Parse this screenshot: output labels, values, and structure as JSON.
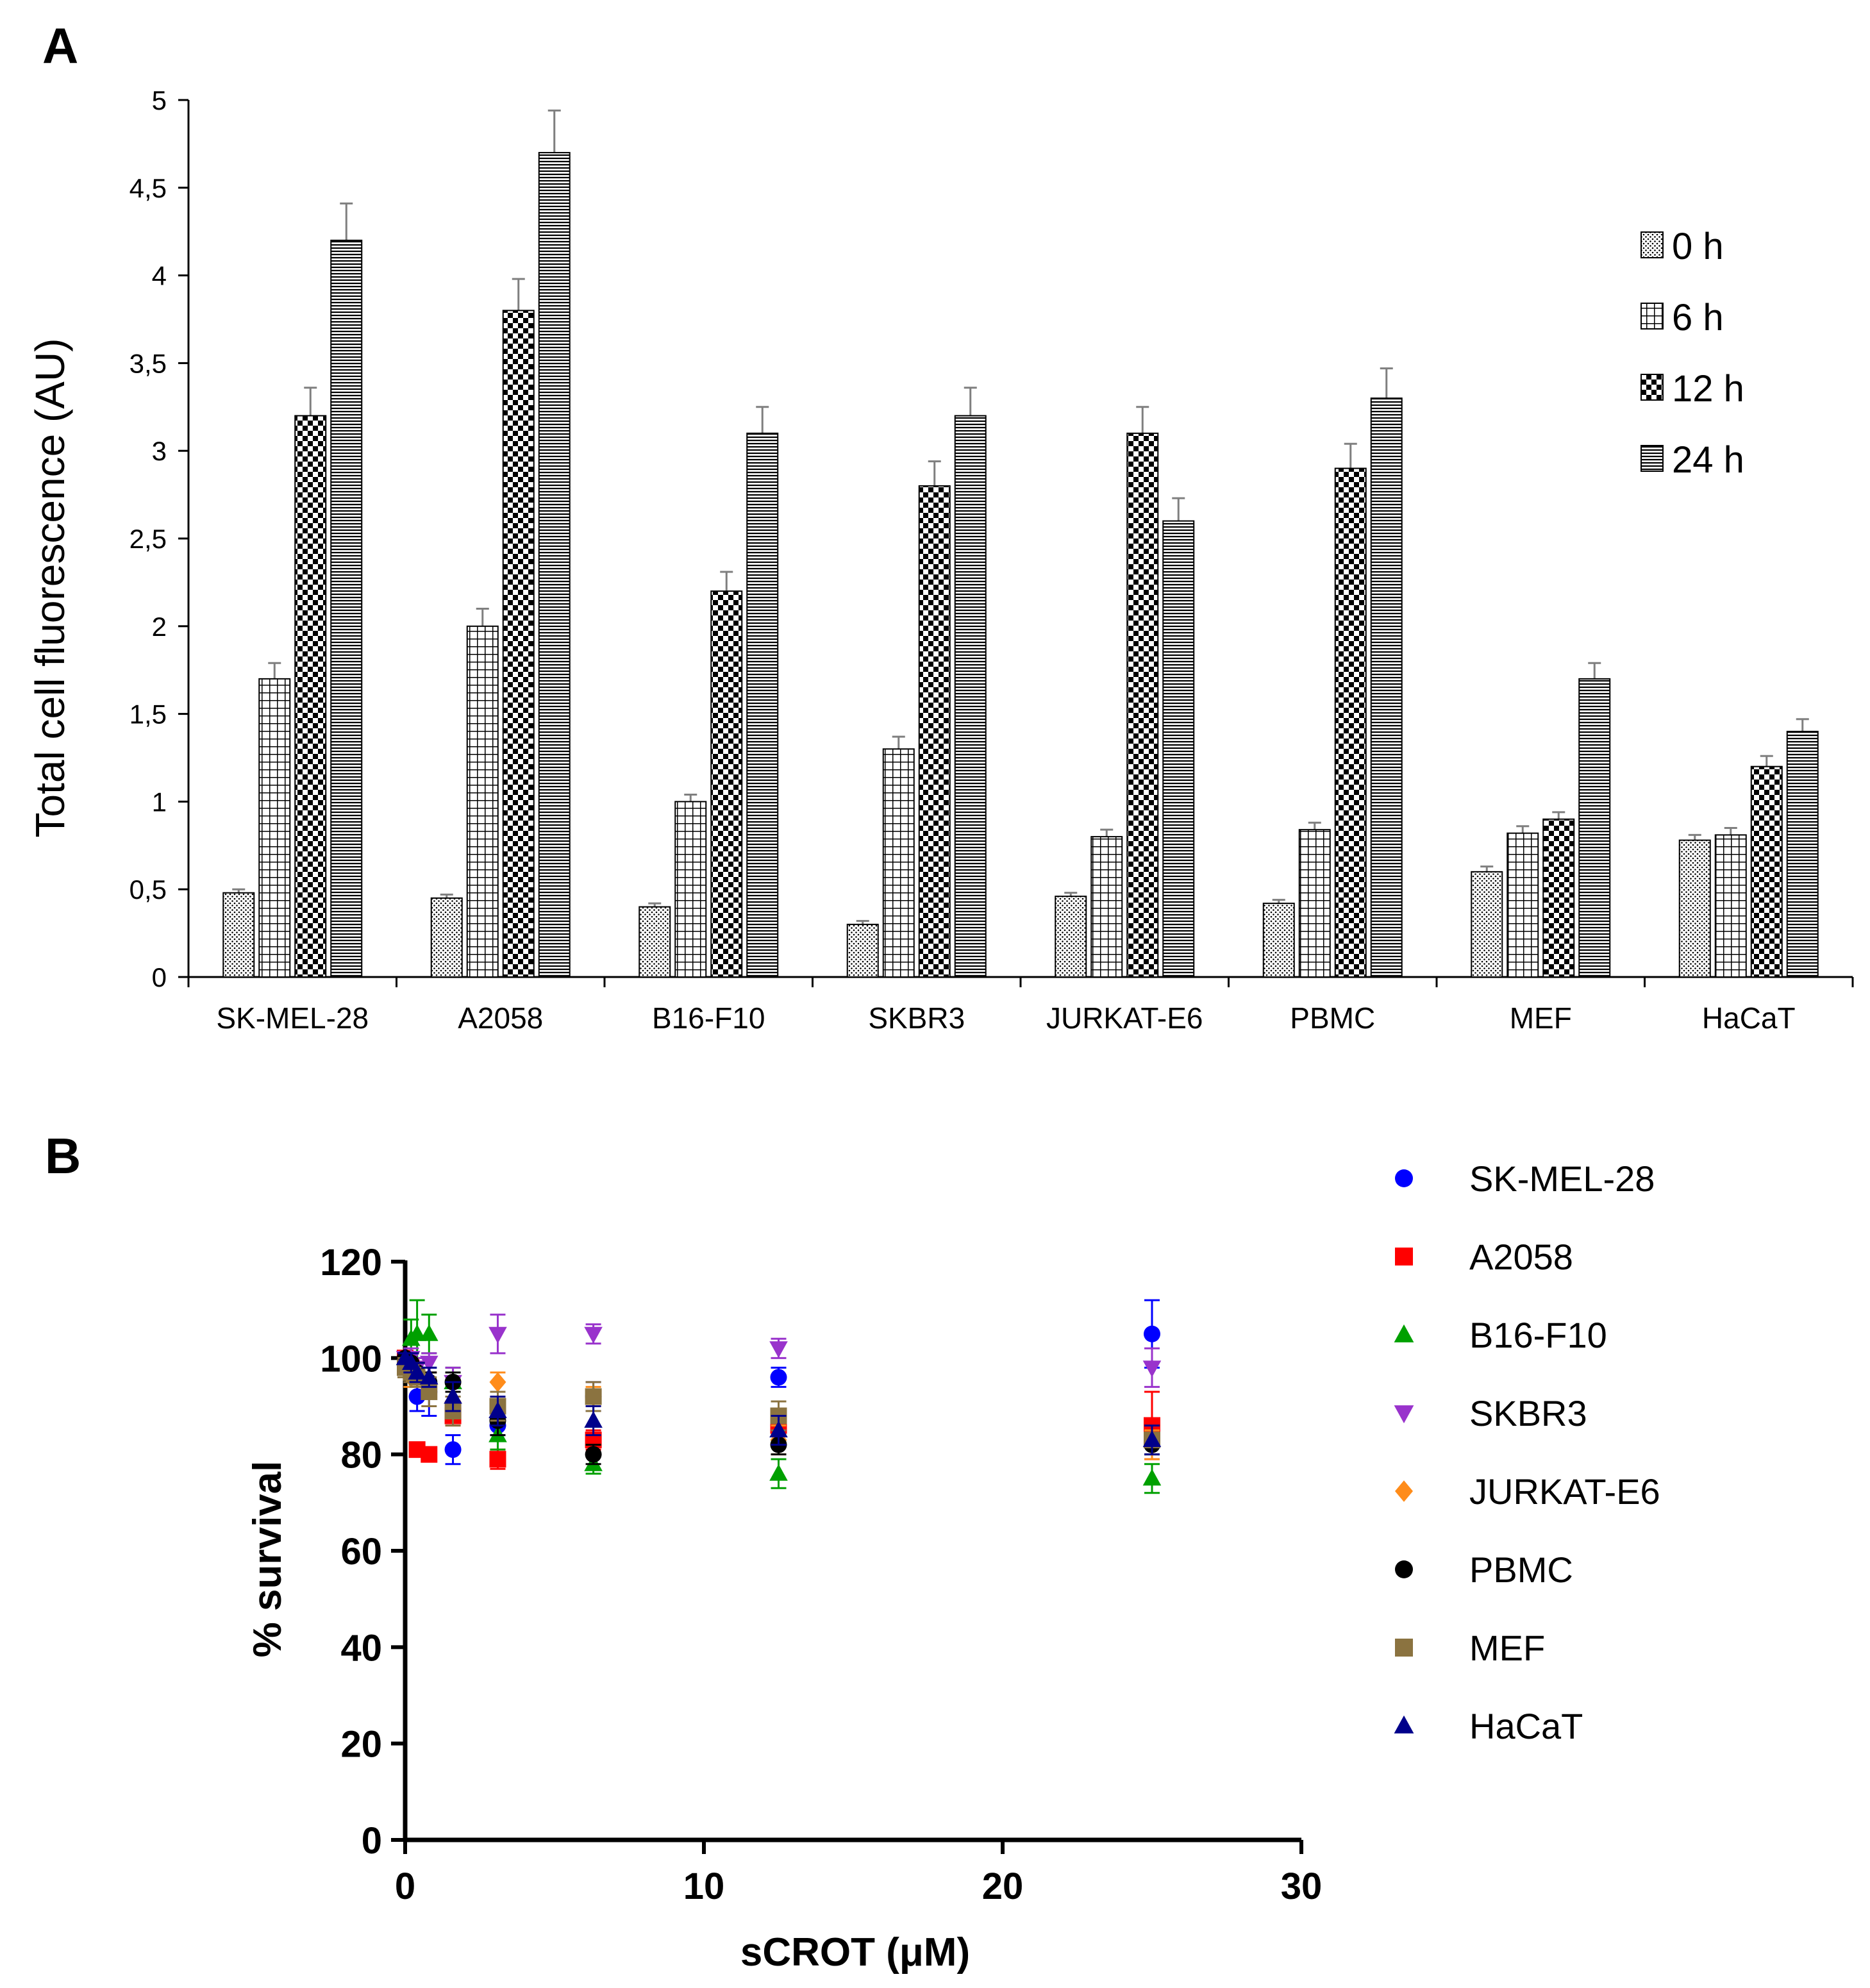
{
  "chart_data": [
    {
      "panel_label": "A",
      "type": "bar",
      "ylabel": "Total cell fluorescence (AU)",
      "xlabel": "",
      "ylim": [
        0,
        5
      ],
      "yticks": [
        0,
        0.5,
        1,
        1.5,
        2,
        2.5,
        3,
        3.5,
        4,
        4.5,
        5
      ],
      "ytick_labels": [
        "0",
        "0,5",
        "1",
        "1,5",
        "2",
        "2,5",
        "3",
        "3,5",
        "4",
        "4,5",
        "5"
      ],
      "categories": [
        "SK-MEL-28",
        "A2058",
        "B16-F10",
        "SKBR3",
        "JURKAT-E6",
        "PBMC",
        "MEF",
        "HaCaT"
      ],
      "legend_position": "top-right",
      "series": [
        {
          "name": "0 h",
          "pattern": "dots",
          "values": [
            0.48,
            0.45,
            0.4,
            0.3,
            0.46,
            0.42,
            0.6,
            0.78
          ],
          "errors": [
            0.02,
            0.02,
            0.02,
            0.02,
            0.02,
            0.02,
            0.03,
            0.03
          ]
        },
        {
          "name": "6 h",
          "pattern": "grid",
          "values": [
            1.7,
            2.0,
            1.0,
            1.3,
            0.8,
            0.84,
            0.82,
            0.81
          ],
          "errors": [
            0.09,
            0.1,
            0.04,
            0.07,
            0.04,
            0.04,
            0.04,
            0.04
          ]
        },
        {
          "name": "12 h",
          "pattern": "checker",
          "values": [
            3.2,
            3.8,
            2.2,
            2.8,
            3.1,
            2.9,
            0.9,
            1.2
          ],
          "errors": [
            0.16,
            0.18,
            0.11,
            0.14,
            0.15,
            0.14,
            0.04,
            0.06
          ]
        },
        {
          "name": "24 h",
          "pattern": "hlines",
          "values": [
            4.2,
            4.7,
            3.1,
            3.2,
            2.6,
            3.3,
            1.7,
            1.4
          ],
          "errors": [
            0.21,
            0.24,
            0.15,
            0.16,
            0.13,
            0.17,
            0.09,
            0.07
          ]
        }
      ]
    },
    {
      "panel_label": "B",
      "type": "scatter",
      "xlabel": "sCROT (μM)",
      "ylabel": "% survival",
      "xlim": [
        0,
        30
      ],
      "ylim": [
        0,
        120
      ],
      "xticks": [
        0,
        10,
        20,
        30
      ],
      "yticks": [
        0,
        20,
        40,
        60,
        80,
        100,
        120
      ],
      "legend_position": "right",
      "series": [
        {
          "name": "SK-MEL-28",
          "marker": "circle",
          "color": "#0000ff",
          "x": [
            0,
            0.2,
            0.4,
            0.8,
            1.6,
            3.1,
            6.3,
            12.5,
            25
          ],
          "y": [
            100,
            99,
            92,
            93,
            81,
            86,
            92,
            96,
            105
          ],
          "errors": [
            1,
            1,
            3,
            5,
            3,
            2,
            3,
            2,
            7
          ]
        },
        {
          "name": "A2058",
          "marker": "square",
          "color": "#ff0000",
          "x": [
            0,
            0.2,
            0.4,
            0.8,
            1.6,
            3.1,
            6.3,
            12.5,
            25
          ],
          "y": [
            100,
            98,
            81,
            80,
            88,
            79,
            83,
            86,
            86
          ],
          "errors": [
            1,
            1,
            1,
            1,
            2,
            2,
            2,
            3,
            7
          ]
        },
        {
          "name": "B16-F10",
          "marker": "triangle-up",
          "color": "#00a000",
          "x": [
            0,
            0.2,
            0.4,
            0.8,
            1.6,
            3.1,
            6.3,
            12.5,
            25
          ],
          "y": [
            100,
            104,
            105,
            105,
            95,
            84,
            78,
            76,
            75
          ],
          "errors": [
            1,
            4,
            7,
            4,
            3,
            3,
            2,
            3,
            3
          ]
        },
        {
          "name": "SKBR3",
          "marker": "triangle-down",
          "color": "#9933cc",
          "x": [
            0,
            0.2,
            0.4,
            0.8,
            1.6,
            3.1,
            6.3,
            12.5,
            25
          ],
          "y": [
            100,
            100,
            98,
            99,
            95,
            105,
            105,
            102,
            98
          ],
          "errors": [
            1,
            2,
            2,
            2,
            3,
            4,
            2,
            2,
            4
          ]
        },
        {
          "name": "JURKAT-E6",
          "marker": "diamond",
          "color": "#ff8c1a",
          "x": [
            0,
            0.2,
            0.4,
            0.8,
            1.6,
            3.1,
            6.3,
            12.5,
            25
          ],
          "y": [
            98,
            96,
            97,
            95,
            91,
            95,
            92,
            83,
            82
          ],
          "errors": [
            1,
            2,
            2,
            2,
            2,
            2,
            2,
            3,
            3
          ]
        },
        {
          "name": "PBMC",
          "marker": "circle",
          "color": "#000000",
          "x": [
            0,
            0.2,
            0.4,
            0.8,
            1.6,
            3.1,
            6.3,
            12.5,
            25
          ],
          "y": [
            100,
            99,
            97,
            95,
            95,
            87,
            80,
            82,
            82
          ],
          "errors": [
            1,
            2,
            2,
            2,
            2,
            3,
            2,
            2,
            2
          ]
        },
        {
          "name": "MEF",
          "marker": "square",
          "color": "#8b7340",
          "x": [
            0,
            0.2,
            0.4,
            0.8,
            1.6,
            3.1,
            6.3,
            12.5,
            25
          ],
          "y": [
            98,
            97,
            96,
            93,
            89,
            90,
            92,
            88,
            83
          ],
          "errors": [
            2,
            2,
            2,
            3,
            3,
            3,
            3,
            3,
            3
          ]
        },
        {
          "name": "HaCaT",
          "marker": "triangle-up",
          "color": "#00008b",
          "x": [
            0,
            0.2,
            0.4,
            0.8,
            1.6,
            3.1,
            6.3,
            12.5,
            25
          ],
          "y": [
            100,
            99,
            97,
            96,
            92,
            89,
            87,
            85,
            83
          ],
          "errors": [
            1,
            2,
            2,
            2,
            3,
            3,
            3,
            3,
            3
          ]
        }
      ]
    }
  ]
}
